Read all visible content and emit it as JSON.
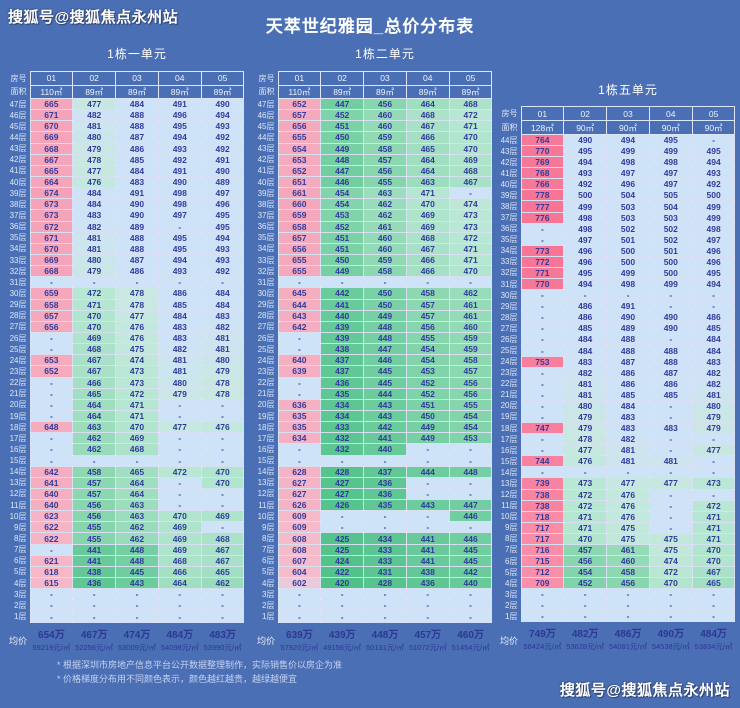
{
  "page": {
    "title": "天萃世纪雅园_总价分布表",
    "watermark_top": "搜狐号@搜狐焦点永州站",
    "watermark_bottom": "搜狐号@搜狐焦点永州站",
    "footnotes": [
      "* 根据深圳市房地产信息平台公开数据整理制作，实际销售价以房企为准",
      "* 价格梯度分布用不同颜色表示，颜色越红越贵，越绿越便宜"
    ]
  },
  "colors": {
    "background": "#4a6fb5",
    "cell_text": "#323b9c",
    "header_text": "#eef3fd",
    "grid_line": "#eef4fd",
    "empty_cell": "#cfe3f8",
    "footnote_text": "#c6d2f0",
    "scale": [
      [
        420,
        "#4fc188"
      ],
      [
        436,
        "#5fc794"
      ],
      [
        448,
        "#74cfa2"
      ],
      [
        458,
        "#8dd8b1"
      ],
      [
        466,
        "#a5e0c4"
      ],
      [
        472,
        "#b8e7d3"
      ],
      [
        478,
        "#c9e8e2"
      ],
      [
        483,
        "#cfe3f8"
      ],
      [
        598,
        "#cfe3f8"
      ],
      [
        604,
        "#f6bccb"
      ],
      [
        645,
        "#f5adc0"
      ],
      [
        680,
        "#f5a0b6"
      ],
      [
        709,
        "#f98fa9"
      ],
      [
        780,
        "#f77394"
      ]
    ]
  },
  "chart_data": [
    {
      "type": "heatmap",
      "title": "1栋一单元",
      "corner_labels": {
        "room": "房号",
        "area": "面积"
      },
      "columns": [
        "01",
        "02",
        "03",
        "04",
        "05"
      ],
      "areas": [
        "110㎡",
        "89㎡",
        "89㎡",
        "89㎡",
        "89㎡"
      ],
      "top_floor": 47,
      "floor_suffix": "层",
      "rows": [
        [
          "665",
          "477",
          "484",
          "491",
          "490"
        ],
        [
          "671",
          "482",
          "488",
          "496",
          "494"
        ],
        [
          "670",
          "481",
          "488",
          "495",
          "493"
        ],
        [
          "669",
          "480",
          "487",
          "494",
          "492"
        ],
        [
          "668",
          "479",
          "486",
          "493",
          "492"
        ],
        [
          "667",
          "478",
          "485",
          "492",
          "491"
        ],
        [
          "665",
          "477",
          "484",
          "491",
          "490"
        ],
        [
          "664",
          "476",
          "483",
          "490",
          "489"
        ],
        [
          "674",
          "484",
          "491",
          "498",
          "497"
        ],
        [
          "673",
          "484",
          "490",
          "498",
          "496"
        ],
        [
          "673",
          "483",
          "490",
          "497",
          "495"
        ],
        [
          "672",
          "482",
          "489",
          "-",
          "495"
        ],
        [
          "671",
          "481",
          "488",
          "495",
          "494"
        ],
        [
          "670",
          "481",
          "488",
          "495",
          "493"
        ],
        [
          "669",
          "480",
          "487",
          "494",
          "493"
        ],
        [
          "668",
          "479",
          "486",
          "493",
          "492"
        ],
        [
          "-",
          "-",
          "-",
          "-",
          "-"
        ],
        [
          "659",
          "472",
          "478",
          "486",
          "484"
        ],
        [
          "658",
          "471",
          "478",
          "485",
          "484"
        ],
        [
          "657",
          "470",
          "477",
          "484",
          "483"
        ],
        [
          "656",
          "470",
          "476",
          "483",
          "482"
        ],
        [
          "-",
          "469",
          "476",
          "483",
          "481"
        ],
        [
          "-",
          "468",
          "475",
          "482",
          "481"
        ],
        [
          "653",
          "467",
          "474",
          "481",
          "480"
        ],
        [
          "652",
          "467",
          "473",
          "481",
          "479"
        ],
        [
          "-",
          "466",
          "473",
          "480",
          "478"
        ],
        [
          "-",
          "465",
          "472",
          "479",
          "478"
        ],
        [
          "-",
          "464",
          "471",
          "-",
          "-"
        ],
        [
          "-",
          "464",
          "471",
          "-",
          "-"
        ],
        [
          "648",
          "463",
          "470",
          "477",
          "476"
        ],
        [
          "-",
          "462",
          "469",
          "-",
          "-"
        ],
        [
          "-",
          "462",
          "468",
          "-",
          "-"
        ],
        [
          "-",
          "-",
          "-",
          "-",
          "-"
        ],
        [
          "642",
          "458",
          "465",
          "472",
          "470"
        ],
        [
          "641",
          "457",
          "464",
          "-",
          "470"
        ],
        [
          "640",
          "457",
          "464",
          "-",
          "-"
        ],
        [
          "640",
          "456",
          "463",
          "-",
          "-"
        ],
        [
          "623",
          "456",
          "463",
          "470",
          "469"
        ],
        [
          "622",
          "455",
          "462",
          "469",
          "-"
        ],
        [
          "622",
          "455",
          "462",
          "469",
          "468"
        ],
        [
          "-",
          "441",
          "448",
          "469",
          "467"
        ],
        [
          "621",
          "441",
          "448",
          "468",
          "467"
        ],
        [
          "618",
          "438",
          "445",
          "466",
          "465"
        ],
        [
          "615",
          "436",
          "443",
          "464",
          "462"
        ],
        [
          "-",
          "-",
          "-",
          "-",
          "-"
        ],
        [
          "-",
          "-",
          "-",
          "-",
          "-"
        ],
        [
          "-",
          "-",
          "-",
          "-",
          "-"
        ]
      ],
      "avg_label": "均价",
      "avg_total": [
        "654万",
        "467万",
        "474万",
        "484万",
        "483万"
      ],
      "avg_per_sqm": [
        "59219元/㎡",
        "52256元/㎡",
        "53009元/㎡",
        "54098元/㎡",
        "53990元/㎡"
      ]
    },
    {
      "type": "heatmap",
      "title": "1栋二单元",
      "corner_labels": {
        "room": "房号",
        "area": "面积"
      },
      "columns": [
        "01",
        "02",
        "03",
        "04",
        "05"
      ],
      "areas": [
        "110㎡",
        "89㎡",
        "89㎡",
        "89㎡",
        "89㎡"
      ],
      "top_floor": 47,
      "floor_suffix": "层",
      "rows": [
        [
          "652",
          "447",
          "456",
          "464",
          "468"
        ],
        [
          "657",
          "452",
          "460",
          "468",
          "472"
        ],
        [
          "656",
          "451",
          "460",
          "467",
          "471"
        ],
        [
          "655",
          "450",
          "459",
          "466",
          "470"
        ],
        [
          "654",
          "449",
          "458",
          "465",
          "470"
        ],
        [
          "653",
          "448",
          "457",
          "464",
          "469"
        ],
        [
          "652",
          "447",
          "456",
          "464",
          "468"
        ],
        [
          "651",
          "446",
          "455",
          "463",
          "467"
        ],
        [
          "661",
          "454",
          "463",
          "471",
          "-"
        ],
        [
          "660",
          "454",
          "462",
          "470",
          "474"
        ],
        [
          "659",
          "453",
          "462",
          "469",
          "473"
        ],
        [
          "658",
          "452",
          "461",
          "469",
          "473"
        ],
        [
          "657",
          "451",
          "460",
          "468",
          "472"
        ],
        [
          "656",
          "451",
          "460",
          "467",
          "471"
        ],
        [
          "655",
          "450",
          "459",
          "466",
          "471"
        ],
        [
          "655",
          "449",
          "458",
          "466",
          "470"
        ],
        [
          "-",
          "-",
          "-",
          "-",
          "-"
        ],
        [
          "645",
          "442",
          "450",
          "458",
          "462"
        ],
        [
          "644",
          "441",
          "450",
          "457",
          "461"
        ],
        [
          "643",
          "440",
          "449",
          "457",
          "461"
        ],
        [
          "642",
          "439",
          "448",
          "456",
          "460"
        ],
        [
          "-",
          "439",
          "448",
          "455",
          "459"
        ],
        [
          "-",
          "438",
          "447",
          "454",
          "459"
        ],
        [
          "640",
          "437",
          "446",
          "454",
          "458"
        ],
        [
          "639",
          "437",
          "445",
          "453",
          "457"
        ],
        [
          "-",
          "436",
          "445",
          "452",
          "456"
        ],
        [
          "-",
          "435",
          "444",
          "452",
          "456"
        ],
        [
          "636",
          "434",
          "443",
          "451",
          "455"
        ],
        [
          "635",
          "434",
          "443",
          "450",
          "454"
        ],
        [
          "635",
          "433",
          "442",
          "449",
          "454"
        ],
        [
          "634",
          "432",
          "441",
          "449",
          "453"
        ],
        [
          "-",
          "432",
          "440",
          "-",
          "-"
        ],
        [
          "-",
          "-",
          "-",
          "-",
          "-"
        ],
        [
          "628",
          "428",
          "437",
          "444",
          "448"
        ],
        [
          "627",
          "427",
          "436",
          "-",
          "-"
        ],
        [
          "627",
          "427",
          "436",
          "-",
          "-"
        ],
        [
          "626",
          "426",
          "435",
          "443",
          "447"
        ],
        [
          "609",
          "-",
          "-",
          "-",
          "446"
        ],
        [
          "609",
          "-",
          "-",
          "-",
          "-"
        ],
        [
          "608",
          "425",
          "434",
          "441",
          "446"
        ],
        [
          "608",
          "425",
          "433",
          "441",
          "445"
        ],
        [
          "607",
          "424",
          "433",
          "441",
          "445"
        ],
        [
          "604",
          "422",
          "431",
          "438",
          "442"
        ],
        [
          "602",
          "420",
          "428",
          "436",
          "440"
        ],
        [
          "-",
          "-",
          "-",
          "-",
          "-"
        ],
        [
          "-",
          "-",
          "-",
          "-",
          "-"
        ],
        [
          "-",
          "-",
          "-",
          "-",
          "-"
        ]
      ],
      "avg_label": "均价",
      "avg_total": [
        "639万",
        "439万",
        "448万",
        "457万",
        "460万"
      ],
      "avg_per_sqm": [
        "57920元/㎡",
        "49156元/㎡",
        "50131元/㎡",
        "51072元/㎡",
        "51454元/㎡"
      ]
    },
    {
      "type": "heatmap",
      "title": "1栋五单元",
      "corner_labels": {
        "room": "房号",
        "area": "面积"
      },
      "columns": [
        "01",
        "02",
        "03",
        "04",
        "05"
      ],
      "areas": [
        "128㎡",
        "90㎡",
        "90㎡",
        "90㎡",
        "90㎡"
      ],
      "top_floor": 44,
      "floor_suffix": "层",
      "rows": [
        [
          "764",
          "490",
          "494",
          "495",
          "-"
        ],
        [
          "770",
          "495",
          "499",
          "499",
          "495"
        ],
        [
          "769",
          "494",
          "498",
          "498",
          "494"
        ],
        [
          "768",
          "493",
          "497",
          "497",
          "493"
        ],
        [
          "766",
          "492",
          "496",
          "497",
          "492"
        ],
        [
          "778",
          "500",
          "504",
          "505",
          "500"
        ],
        [
          "777",
          "499",
          "503",
          "504",
          "499"
        ],
        [
          "776",
          "498",
          "503",
          "503",
          "499"
        ],
        [
          "-",
          "498",
          "502",
          "502",
          "498"
        ],
        [
          "-",
          "497",
          "501",
          "502",
          "497"
        ],
        [
          "773",
          "496",
          "500",
          "501",
          "496"
        ],
        [
          "772",
          "496",
          "500",
          "500",
          "496"
        ],
        [
          "771",
          "495",
          "499",
          "500",
          "495"
        ],
        [
          "770",
          "494",
          "498",
          "499",
          "494"
        ],
        [
          "-",
          "-",
          "-",
          "-",
          "-"
        ],
        [
          "-",
          "486",
          "491",
          "-",
          "-"
        ],
        [
          "-",
          "486",
          "490",
          "490",
          "486"
        ],
        [
          "-",
          "485",
          "489",
          "490",
          "485"
        ],
        [
          "-",
          "484",
          "488",
          "-",
          "484"
        ],
        [
          "-",
          "484",
          "488",
          "488",
          "484"
        ],
        [
          "753",
          "483",
          "487",
          "488",
          "483"
        ],
        [
          "-",
          "482",
          "486",
          "487",
          "482"
        ],
        [
          "-",
          "481",
          "486",
          "486",
          "482"
        ],
        [
          "-",
          "481",
          "485",
          "485",
          "481"
        ],
        [
          "-",
          "480",
          "484",
          "-",
          "480"
        ],
        [
          "-",
          "479",
          "483",
          "-",
          "479"
        ],
        [
          "747",
          "479",
          "483",
          "483",
          "479"
        ],
        [
          "-",
          "478",
          "482",
          "-",
          "-"
        ],
        [
          "-",
          "477",
          "481",
          "-",
          "477"
        ],
        [
          "744",
          "476",
          "481",
          "481",
          "-"
        ],
        [
          "-",
          "-",
          "-",
          "-",
          "-"
        ],
        [
          "739",
          "473",
          "477",
          "477",
          "473"
        ],
        [
          "738",
          "472",
          "476",
          "-",
          "-"
        ],
        [
          "738",
          "472",
          "476",
          "-",
          "472"
        ],
        [
          "718",
          "471",
          "476",
          "-",
          "471"
        ],
        [
          "717",
          "471",
          "475",
          "-",
          "471"
        ],
        [
          "717",
          "470",
          "475",
          "475",
          "471"
        ],
        [
          "716",
          "457",
          "461",
          "475",
          "470"
        ],
        [
          "715",
          "456",
          "460",
          "474",
          "470"
        ],
        [
          "712",
          "454",
          "458",
          "472",
          "467"
        ],
        [
          "709",
          "452",
          "456",
          "470",
          "465"
        ],
        [
          "-",
          "-",
          "-",
          "-",
          "-"
        ],
        [
          "-",
          "-",
          "-",
          "-",
          "-"
        ],
        [
          "-",
          "-",
          "-",
          "-",
          "-"
        ]
      ],
      "avg_label": "均价",
      "avg_total": [
        "749万",
        "482万",
        "486万",
        "490万",
        "484万"
      ],
      "avg_per_sqm": [
        "58424元/㎡",
        "53628元/㎡",
        "54081元/㎡",
        "54538元/㎡",
        "53834元/㎡"
      ]
    }
  ]
}
